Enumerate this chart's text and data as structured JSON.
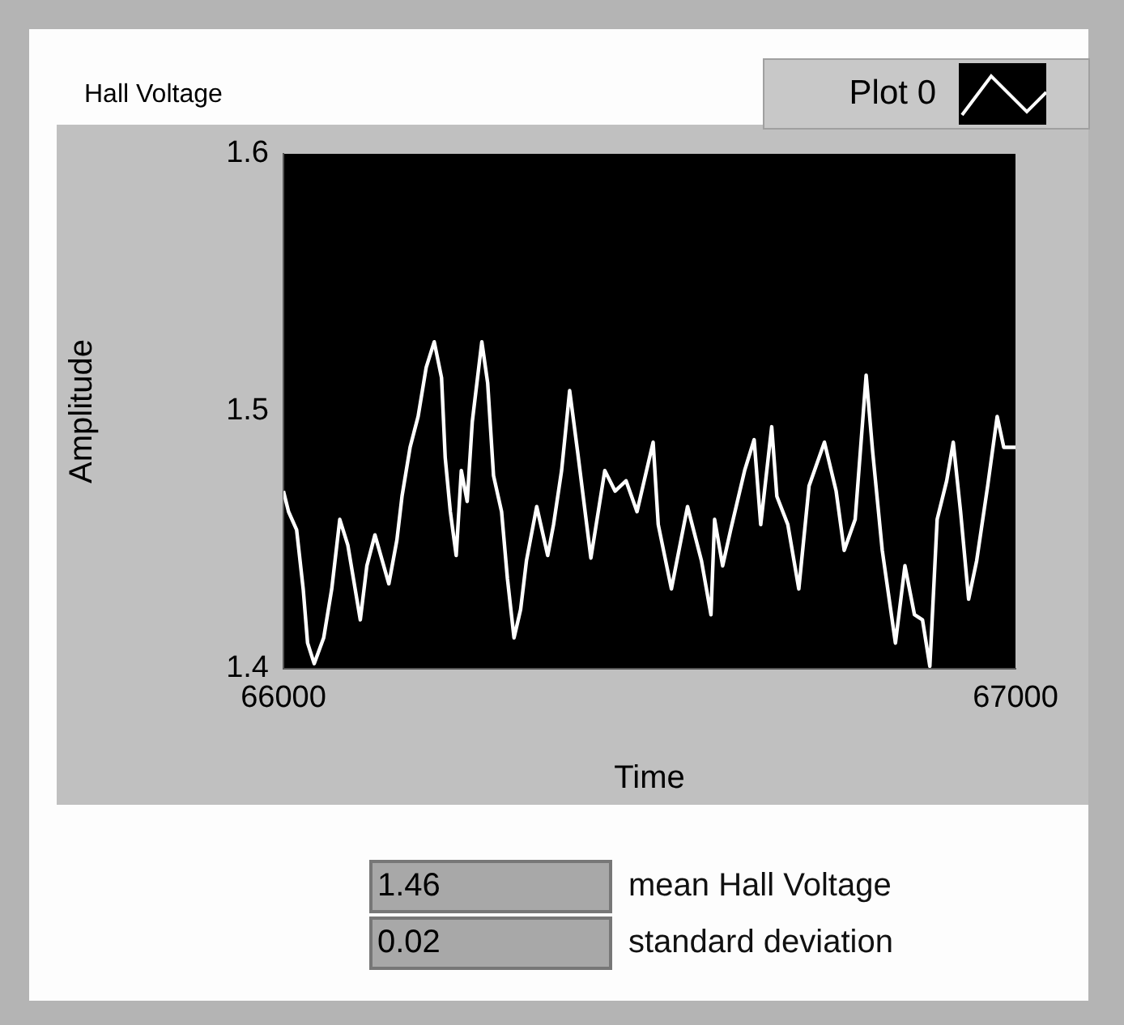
{
  "chart_data": {
    "type": "line",
    "title": "Hall Voltage",
    "xlabel": "Time",
    "ylabel": "Amplitude",
    "xlim": [
      66000,
      67000
    ],
    "xticks": [
      66000,
      67000
    ],
    "ylim": [
      1.4,
      1.6
    ],
    "yticks": [
      1.4,
      1.5,
      1.6
    ],
    "grid": false,
    "legend": "top right",
    "marker": "none",
    "line_style": "solid",
    "annotations": [
      "1.46",
      "mean Hall Voltage",
      "0.02",
      "standard deviation"
    ],
    "series": [
      {
        "name": "Plot 0",
        "color": "#ffffff",
        "x": [
          66000,
          66007,
          66018,
          66027,
          66033,
          66042,
          66055,
          66066,
          66077,
          66088,
          66105,
          66114,
          66125,
          66144,
          66155,
          66162,
          66173,
          66184,
          66195,
          66206,
          66216,
          66221,
          66228,
          66236,
          66243,
          66251,
          66258,
          66271,
          66279,
          66287,
          66298,
          66306,
          66315,
          66324,
          66332,
          66346,
          66361,
          66369,
          66380,
          66391,
          66402,
          66420,
          66439,
          66453,
          66468,
          66483,
          66505,
          66512,
          66530,
          66552,
          66571,
          66584,
          66589,
          66600,
          66611,
          66630,
          66643,
          66652,
          66667,
          66674,
          66689,
          66704,
          66718,
          66739,
          66755,
          66766,
          66781,
          66796,
          66805,
          66818,
          66836,
          66849,
          66862,
          66873,
          66883,
          66893,
          66906,
          66915,
          66925,
          66936,
          66947,
          66962,
          66975,
          66984,
          67000
        ],
        "values": [
          1.469,
          1.461,
          1.454,
          1.431,
          1.41,
          1.402,
          1.412,
          1.431,
          1.458,
          1.448,
          1.419,
          1.44,
          1.452,
          1.433,
          1.45,
          1.467,
          1.486,
          1.498,
          1.517,
          1.527,
          1.513,
          1.482,
          1.461,
          1.444,
          1.477,
          1.465,
          1.496,
          1.527,
          1.511,
          1.475,
          1.461,
          1.435,
          1.412,
          1.423,
          1.442,
          1.463,
          1.444,
          1.456,
          1.477,
          1.508,
          1.484,
          1.443,
          1.477,
          1.469,
          1.473,
          1.461,
          1.488,
          1.456,
          1.431,
          1.463,
          1.442,
          1.421,
          1.458,
          1.44,
          1.454,
          1.477,
          1.489,
          1.456,
          1.494,
          1.467,
          1.456,
          1.431,
          1.471,
          1.488,
          1.469,
          1.446,
          1.458,
          1.514,
          1.484,
          1.446,
          1.41,
          1.44,
          1.421,
          1.419,
          1.401,
          1.458,
          1.473,
          1.488,
          1.461,
          1.427,
          1.442,
          1.471,
          1.498,
          1.486,
          1.486
        ]
      }
    ]
  }
}
